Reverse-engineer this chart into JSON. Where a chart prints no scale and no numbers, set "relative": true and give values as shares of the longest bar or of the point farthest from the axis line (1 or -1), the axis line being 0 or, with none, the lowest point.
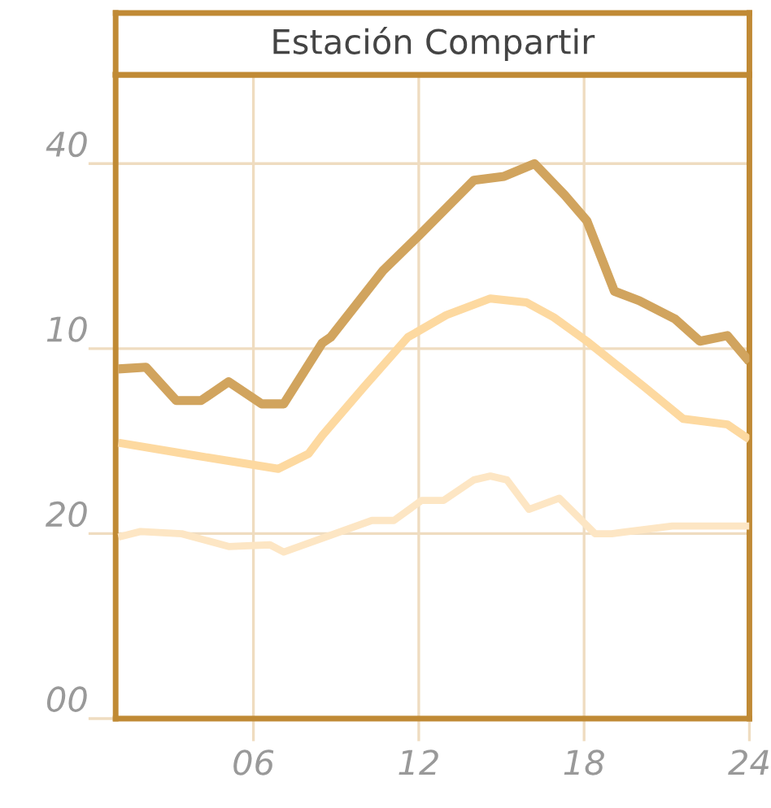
{
  "chart_data": {
    "type": "line",
    "title": "Estación Compartir",
    "relative": true,
    "xlim": [
      1,
      24
    ],
    "xticks": [
      {
        "value": 6,
        "label": "06"
      },
      {
        "value": 12,
        "label": "12"
      },
      {
        "value": 18,
        "label": "18"
      },
      {
        "value": 24,
        "label": "24"
      }
    ],
    "annotations": [
      "40",
      "10",
      "20",
      "00"
    ],
    "grid": true,
    "marker": "none",
    "line_style": "solid",
    "series": [
      {
        "color": "#d1a45e",
        "x": [
          1.1,
          2.1,
          3.2,
          4.1,
          5.1,
          6.3,
          7.1,
          8.5,
          8.8,
          10.7,
          12.0,
          14.0,
          15.1,
          16.2,
          17.3,
          18.1,
          19.1,
          20.0,
          21.3,
          22.2,
          23.2,
          24.0
        ],
        "values": [
          0.63,
          0.633,
          0.573,
          0.573,
          0.607,
          0.567,
          0.567,
          0.677,
          0.687,
          0.807,
          0.87,
          0.97,
          0.977,
          1,
          0.943,
          0.897,
          0.77,
          0.753,
          0.72,
          0.68,
          0.69,
          0.643
        ]
      },
      {
        "color": "#fdd9a0",
        "x": [
          1.1,
          4.0,
          6.9,
          8.0,
          8.5,
          10.0,
          11.6,
          13.0,
          14.6,
          15.9,
          16.9,
          18.1,
          20.2,
          21.6,
          23.2,
          24.0
        ],
        "values": [
          0.497,
          0.473,
          0.45,
          0.477,
          0.51,
          0.597,
          0.687,
          0.727,
          0.757,
          0.75,
          0.723,
          0.68,
          0.597,
          0.54,
          0.53,
          0.503
        ]
      },
      {
        "color": "#fde6c4",
        "x": [
          1.1,
          1.9,
          3.4,
          5.1,
          6.6,
          7.1,
          10.3,
          11.1,
          12.1,
          12.9,
          14.0,
          14.6,
          15.2,
          16.0,
          17.1,
          18.4,
          19.0,
          21.2,
          24.0
        ],
        "values": [
          0.327,
          0.337,
          0.333,
          0.31,
          0.313,
          0.3,
          0.357,
          0.357,
          0.393,
          0.393,
          0.43,
          0.437,
          0.43,
          0.377,
          0.397,
          0.333,
          0.333,
          0.347,
          0.347
        ]
      }
    ]
  }
}
